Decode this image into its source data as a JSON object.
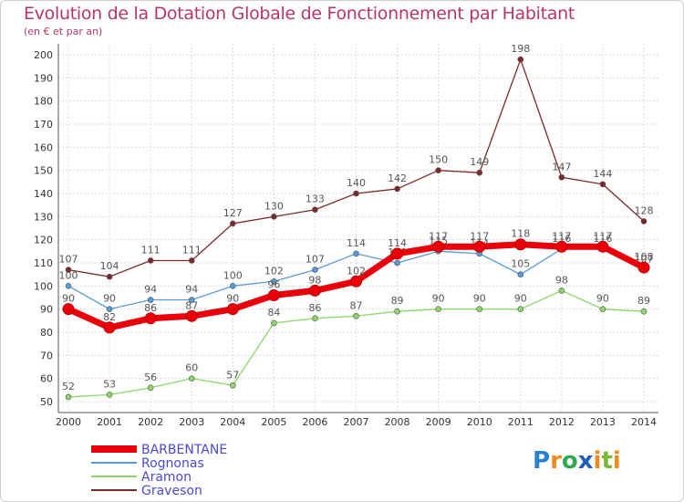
{
  "title": "Evolution de la Dotation Globale de Fonctionnement par Habitant",
  "subtitle": "(en € et par an)",
  "logo": {
    "p": "P",
    "r": "r",
    "o": "o",
    "x": "x",
    "i": "i",
    "t": "t",
    "i2": "i"
  },
  "chart_data": {
    "type": "line",
    "title": "Evolution de la Dotation Globale de Fonctionnement par Habitant",
    "subtitle": "(en € et par an)",
    "xlabel": "",
    "ylabel": "",
    "ylim": [
      50,
      200
    ],
    "ytick_step": 10,
    "grid": true,
    "legend_position": "bottom-left",
    "x": [
      "2000",
      "2001",
      "2002",
      "2003",
      "2004",
      "2005",
      "2006",
      "2007",
      "2008",
      "2009",
      "2010",
      "2011",
      "2012",
      "2013",
      "2014"
    ],
    "series": [
      {
        "name": "Graveson",
        "color": "#7b2a2a",
        "values": [
          107,
          104,
          111,
          111,
          127,
          130,
          133,
          140,
          142,
          150,
          149,
          198,
          147,
          144,
          128
        ]
      },
      {
        "name": "Aramon",
        "color": "#8ed66a",
        "values": [
          52,
          53,
          56,
          60,
          57,
          84,
          86,
          87,
          89,
          90,
          90,
          90,
          98,
          90,
          89
        ]
      },
      {
        "name": "Rognonas",
        "color": "#5b9bd5",
        "values": [
          100,
          90,
          94,
          94,
          100,
          102,
          107,
          114,
          110,
          115,
          114,
          105,
          116,
          116,
          107
        ]
      },
      {
        "name": "BARBENTANE",
        "color": "#e8000b",
        "values": [
          90,
          82,
          86,
          87,
          90,
          96,
          98,
          102,
          114,
          117,
          117,
          118,
          117,
          117,
          108
        ]
      }
    ]
  }
}
